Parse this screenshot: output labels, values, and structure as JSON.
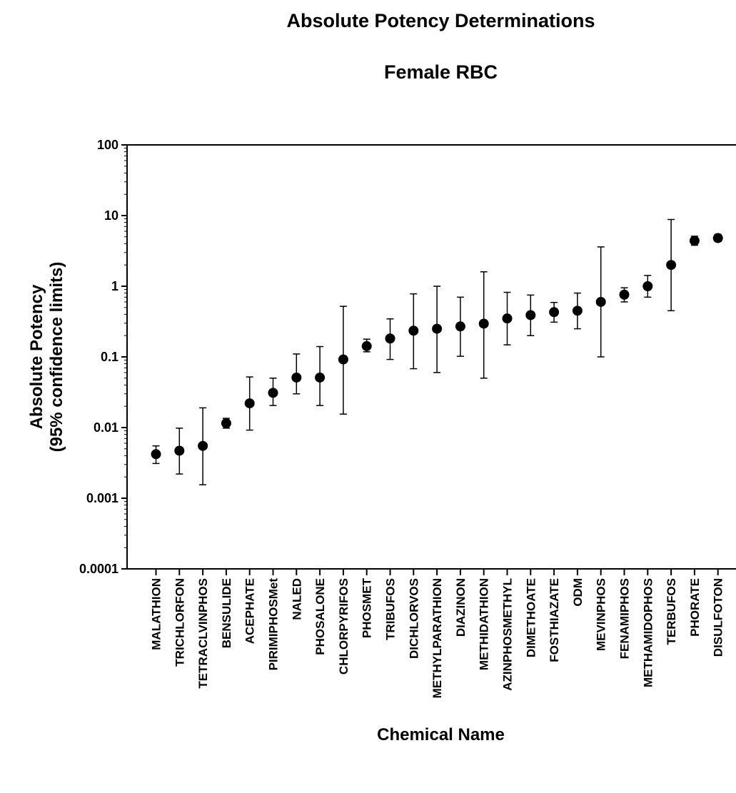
{
  "chart_data": {
    "type": "scatter",
    "title": "Absolute Potency Determinations",
    "subtitle": "Female RBC",
    "xlabel": "Chemical Name",
    "ylabel_line1": "Absolute Potency",
    "ylabel_line2": "(95% confidence limits)",
    "yscale": "log",
    "ylim": [
      0.0001,
      100
    ],
    "yticks": [
      {
        "value": 100,
        "label": "100"
      },
      {
        "value": 10,
        "label": "10"
      },
      {
        "value": 1,
        "label": "1"
      },
      {
        "value": 0.1,
        "label": "0.1"
      },
      {
        "value": 0.01,
        "label": "0.01"
      },
      {
        "value": 0.001,
        "label": "0.001"
      },
      {
        "value": 0.0001,
        "label": "0.0001"
      }
    ],
    "grid": false,
    "marker_color": "#000000",
    "points": [
      {
        "name": "MALATHION",
        "value": 0.0042,
        "lower": 0.0031,
        "upper": 0.0055
      },
      {
        "name": "TRICHLORFON",
        "value": 0.0047,
        "lower": 0.0022,
        "upper": 0.0098
      },
      {
        "name": "TETRACLVINPHOS",
        "value": 0.0055,
        "lower": 0.00155,
        "upper": 0.019
      },
      {
        "name": "BENSULIDE",
        "value": 0.0115,
        "lower": 0.0098,
        "upper": 0.0135
      },
      {
        "name": "ACEPHATE",
        "value": 0.022,
        "lower": 0.0092,
        "upper": 0.052
      },
      {
        "name": "PIRIMIPHOSMet",
        "value": 0.031,
        "lower": 0.0205,
        "upper": 0.05
      },
      {
        "name": "NALED",
        "value": 0.051,
        "lower": 0.03,
        "upper": 0.11
      },
      {
        "name": "PHOSALONE",
        "value": 0.051,
        "lower": 0.0205,
        "upper": 0.14
      },
      {
        "name": "CHLORPYRIFOS",
        "value": 0.092,
        "lower": 0.0155,
        "upper": 0.52
      },
      {
        "name": "PHOSMET",
        "value": 0.142,
        "lower": 0.118,
        "upper": 0.178
      },
      {
        "name": "TRIBUFOS",
        "value": 0.182,
        "lower": 0.092,
        "upper": 0.345
      },
      {
        "name": "DICHLORVOS",
        "value": 0.235,
        "lower": 0.068,
        "upper": 0.78
      },
      {
        "name": "METHYLPARATHION",
        "value": 0.25,
        "lower": 0.06,
        "upper": 1.0
      },
      {
        "name": "DIAZINON",
        "value": 0.27,
        "lower": 0.102,
        "upper": 0.7
      },
      {
        "name": "METHIDATHION",
        "value": 0.295,
        "lower": 0.05,
        "upper": 1.6
      },
      {
        "name": "AZINPHOSMETHYL",
        "value": 0.35,
        "lower": 0.148,
        "upper": 0.82
      },
      {
        "name": "DIMETHOATE",
        "value": 0.39,
        "lower": 0.2,
        "upper": 0.75
      },
      {
        "name": "FOSTHIAZATE",
        "value": 0.43,
        "lower": 0.31,
        "upper": 0.59
      },
      {
        "name": "ODM",
        "value": 0.45,
        "lower": 0.25,
        "upper": 0.8
      },
      {
        "name": "MEVINPHOS",
        "value": 0.6,
        "lower": 0.1,
        "upper": 3.6
      },
      {
        "name": "FENAMIPHOS",
        "value": 0.76,
        "lower": 0.6,
        "upper": 0.95
      },
      {
        "name": "METHAMIDOPHOS",
        "value": 1.0,
        "lower": 0.7,
        "upper": 1.42
      },
      {
        "name": "TERBUFOS",
        "value": 2.0,
        "lower": 0.45,
        "upper": 8.8
      },
      {
        "name": "PHORATE",
        "value": 4.4,
        "lower": 3.8,
        "upper": 5.1
      },
      {
        "name": "DISULFOTON",
        "value": 4.8,
        "lower": 4.3,
        "upper": 5.4
      }
    ]
  }
}
